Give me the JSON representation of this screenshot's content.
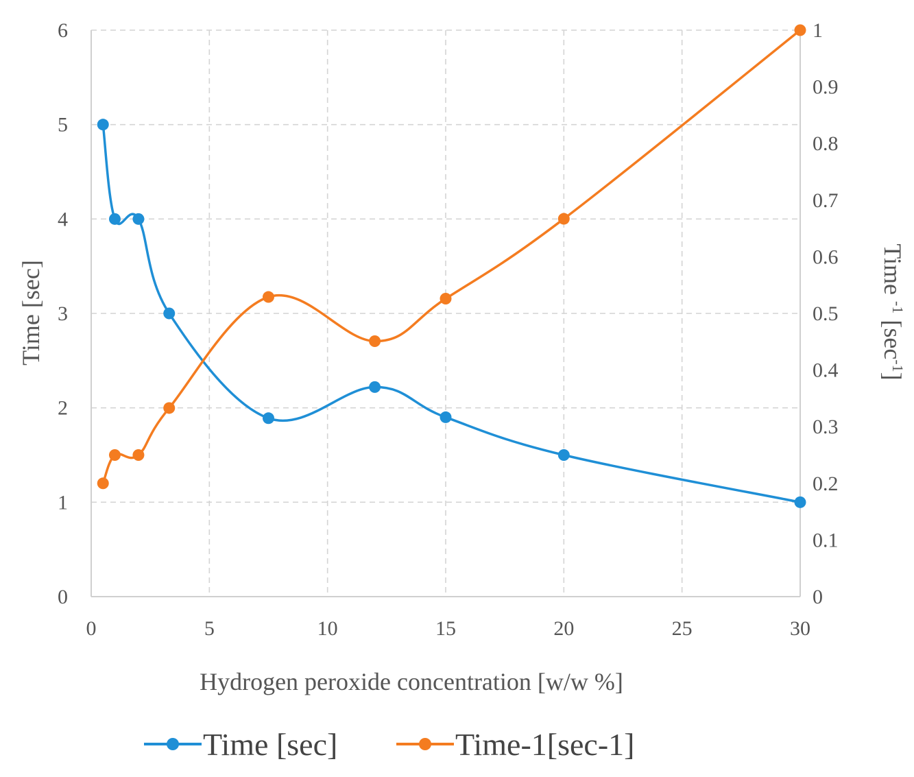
{
  "chart_data": {
    "type": "line",
    "xlabel": "Hydrogen peroxide concentration  [w/w %]",
    "ylabel_left": "Time  [sec]",
    "ylabel_right": {
      "base": "Time  ",
      "exp": "-1",
      "unit_open": " [sec",
      "unit_exp": "-1",
      "unit_close": "]"
    },
    "xlim": [
      0,
      30
    ],
    "ylim_left": [
      0,
      6
    ],
    "ylim_right": [
      0,
      1
    ],
    "x_ticks": [
      "0",
      "5",
      "10",
      "15",
      "20",
      "25",
      "30"
    ],
    "y_left_ticks": [
      "0",
      "1",
      "2",
      "3",
      "4",
      "5",
      "6"
    ],
    "y_right_ticks": [
      "0",
      "0.1",
      "0.2",
      "0.3",
      "0.4",
      "0.5",
      "0.6",
      "0.7",
      "0.8",
      "0.9",
      "1"
    ],
    "grid": true,
    "legend_position": "bottom",
    "series": [
      {
        "name": "Time [sec]",
        "axis": "left",
        "color": "#1f8fd6",
        "x": [
          0.5,
          1,
          2,
          3.3,
          7.5,
          12,
          15,
          20,
          30
        ],
        "values": [
          5,
          4,
          4,
          3,
          1.89,
          2.22,
          1.9,
          1.5,
          1
        ]
      },
      {
        "name": "Time-1[sec-1]",
        "axis": "right",
        "color": "#f47c20",
        "x": [
          0.5,
          1,
          2,
          3.3,
          7.5,
          12,
          15,
          20,
          30
        ],
        "values": [
          0.2,
          0.25,
          0.25,
          0.333,
          0.529,
          0.451,
          0.526,
          0.667,
          1
        ]
      }
    ]
  }
}
